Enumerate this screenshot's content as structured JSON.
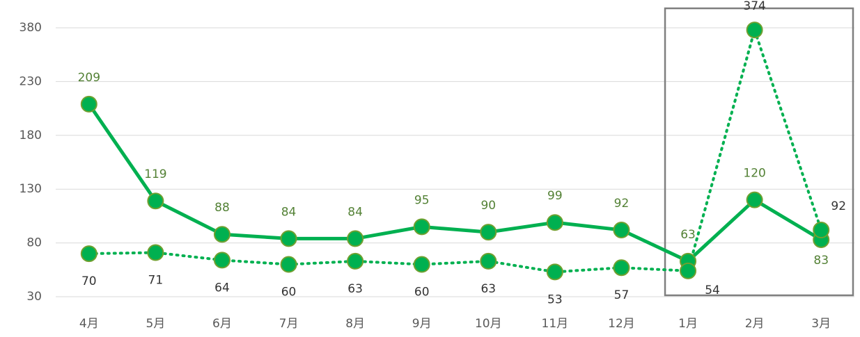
{
  "chart_data": {
    "type": "line",
    "categories": [
      "4月",
      "5月",
      "6月",
      "7月",
      "8月",
      "9月",
      "10月",
      "11月",
      "12月",
      "1月",
      "2月",
      "3月"
    ],
    "series": [
      {
        "color": "#00b050",
        "values": [
          209,
          119,
          88,
          84,
          84,
          95,
          90,
          99,
          92,
          63,
          120,
          83
        ]
      },
      {
        "color": "#00b050",
        "values": [
          70,
          71,
          64,
          60,
          63,
          60,
          63,
          53,
          57,
          54,
          374,
          92
        ]
      }
    ],
    "ylim": [
      30,
      380
    ],
    "yticks": [
      30,
      80,
      130,
      180,
      230,
      380
    ],
    "grid": true
  }
}
